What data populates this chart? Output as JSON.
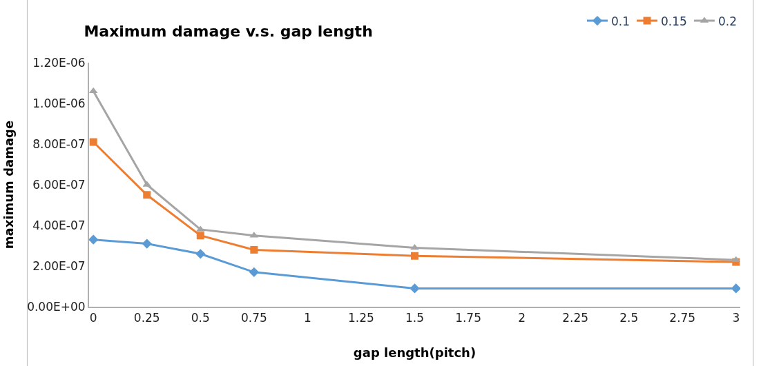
{
  "chart_data": {
    "type": "line",
    "title": "Maximum damage v.s. gap length",
    "xlabel": "gap length(pitch)",
    "ylabel": "maximum damage",
    "x": [
      0,
      0.25,
      0.5,
      0.75,
      1.5,
      3
    ],
    "series": [
      {
        "name": "0.1",
        "color": "#5b9bd5",
        "marker": "diamond",
        "values": [
          3.3e-07,
          3.1e-07,
          2.6e-07,
          1.7e-07,
          9e-08,
          9e-08
        ]
      },
      {
        "name": "0.15",
        "color": "#ed7d31",
        "marker": "square",
        "values": [
          8.1e-07,
          5.5e-07,
          3.5e-07,
          2.8e-07,
          2.5e-07,
          2.2e-07
        ]
      },
      {
        "name": "0.2",
        "color": "#a5a5a5",
        "marker": "triangle",
        "values": [
          1.06e-06,
          6e-07,
          3.8e-07,
          3.5e-07,
          2.9e-07,
          2.3e-07
        ]
      }
    ],
    "xlim": [
      0,
      3
    ],
    "xticks": [
      0,
      0.25,
      0.5,
      0.75,
      1,
      1.25,
      1.5,
      1.75,
      2,
      2.25,
      2.5,
      2.75,
      3
    ],
    "ylim": [
      0,
      1.2e-06
    ],
    "yticks": [
      {
        "value": 0,
        "label": "0.00E+00"
      },
      {
        "value": 2e-07,
        "label": "2.00E-07"
      },
      {
        "value": 4e-07,
        "label": "4.00E-07"
      },
      {
        "value": 6e-07,
        "label": "6.00E-07"
      },
      {
        "value": 8e-07,
        "label": "8.00E-07"
      },
      {
        "value": 1e-06,
        "label": "1.00E-06"
      },
      {
        "value": 1.2e-06,
        "label": "1.20E-06"
      }
    ],
    "legend": "top right",
    "line_style": "solid"
  }
}
